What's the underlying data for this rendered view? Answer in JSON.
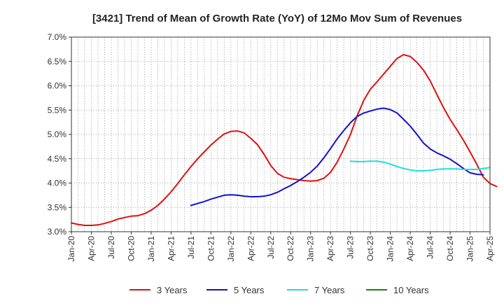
{
  "chart_data": {
    "type": "line",
    "title": "[3421]  Trend of Mean of Growth Rate (YoY) of 12Mo Mov Sum of Revenues",
    "xlabel": "",
    "ylabel": "",
    "ylim": [
      3.0,
      7.0
    ],
    "y_ticks": [
      "3.0%",
      "3.5%",
      "4.0%",
      "4.5%",
      "5.0%",
      "5.5%",
      "6.0%",
      "6.5%",
      "7.0%"
    ],
    "x_ticks": [
      "Jan-20",
      "Apr-20",
      "Jul-20",
      "Oct-20",
      "Jan-21",
      "Apr-21",
      "Jul-21",
      "Oct-21",
      "Jan-22",
      "Apr-22",
      "Jul-22",
      "Oct-22",
      "Jan-23",
      "Apr-23",
      "Jul-23",
      "Oct-23",
      "Jan-24",
      "Apr-24",
      "Jul-24",
      "Oct-24",
      "Jan-25",
      "Apr-25"
    ],
    "x_start": "Jan-20",
    "x_unit": "months since Jan-20",
    "grid": true,
    "legend_position": "bottom",
    "series": [
      {
        "name": "3 Years",
        "color": "#dd1111",
        "start_month": 0,
        "values": [
          3.18,
          3.15,
          3.13,
          3.13,
          3.14,
          3.17,
          3.21,
          3.26,
          3.29,
          3.32,
          3.33,
          3.37,
          3.44,
          3.54,
          3.67,
          3.82,
          3.99,
          4.17,
          4.34,
          4.5,
          4.64,
          4.78,
          4.9,
          5.01,
          5.06,
          5.07,
          5.03,
          4.92,
          4.79,
          4.59,
          4.36,
          4.2,
          4.12,
          4.09,
          4.07,
          4.05,
          4.04,
          4.05,
          4.1,
          4.22,
          4.43,
          4.7,
          5.0,
          5.38,
          5.7,
          5.93,
          6.08,
          6.24,
          6.4,
          6.56,
          6.64,
          6.6,
          6.48,
          6.32,
          6.1,
          5.82,
          5.55,
          5.31,
          5.1,
          4.88,
          4.64,
          4.39,
          4.12,
          3.99,
          3.93
        ]
      },
      {
        "name": "5 Years",
        "color": "#1111cc",
        "start_month": 18,
        "values": [
          3.54,
          3.58,
          3.62,
          3.67,
          3.71,
          3.75,
          3.76,
          3.75,
          3.73,
          3.72,
          3.72,
          3.73,
          3.76,
          3.81,
          3.88,
          3.95,
          4.03,
          4.12,
          4.22,
          4.35,
          4.52,
          4.71,
          4.91,
          5.08,
          5.24,
          5.37,
          5.44,
          5.48,
          5.52,
          5.54,
          5.51,
          5.44,
          5.31,
          5.17,
          5.0,
          4.82,
          4.7,
          4.62,
          4.56,
          4.49,
          4.4,
          4.3,
          4.21,
          4.18,
          4.17
        ]
      },
      {
        "name": "7 Years",
        "color": "#22dddd",
        "start_month": 42,
        "values": [
          4.45,
          4.44,
          4.44,
          4.45,
          4.45,
          4.43,
          4.39,
          4.34,
          4.3,
          4.27,
          4.25,
          4.25,
          4.26,
          4.28,
          4.29,
          4.29,
          4.29,
          4.28,
          4.28,
          4.28,
          4.3,
          4.32
        ]
      },
      {
        "name": "10 Years",
        "color": "#118811",
        "start_month": 0,
        "values": []
      }
    ]
  }
}
